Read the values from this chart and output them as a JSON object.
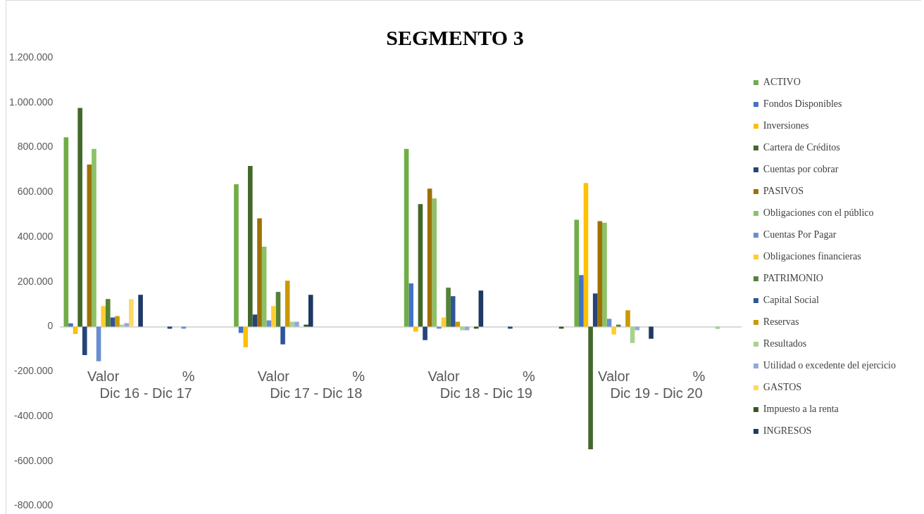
{
  "chart_data": {
    "type": "bar",
    "title": "SEGMENTO 3",
    "categories": [
      "Valor",
      "%",
      "Valor",
      "%",
      "Valor",
      "%",
      "Valor",
      "%"
    ],
    "annotations": [
      "Dic 16 - Dic 17",
      "Dic 17 - Dic 18",
      "Dic 18 - Dic 19",
      "Dic 19 - Dic 20"
    ],
    "ylim": [
      -800000,
      1200000
    ],
    "yticks": [
      {
        "value": -800000,
        "label": "-800.000"
      },
      {
        "value": -600000,
        "label": "-600.000"
      },
      {
        "value": -400000,
        "label": "-400.000"
      },
      {
        "value": -200000,
        "label": "-200.000"
      },
      0,
      {
        "value": 200000,
        "label": "200.000"
      },
      {
        "value": 400000,
        "label": "400.000"
      },
      {
        "value": 600000,
        "label": "600.000"
      },
      {
        "value": 800000,
        "label": "800.000"
      },
      {
        "value": 1000000,
        "label": "1.000.000"
      },
      {
        "value": 1200000,
        "label": "1.200.000"
      }
    ],
    "legend": "right",
    "series": [
      {
        "name": "ACTIVO",
        "color": "#70ad47",
        "values": [
          845000,
          0,
          635000,
          0,
          793000,
          0,
          477000,
          0
        ]
      },
      {
        "name": "Fondos Disponibles",
        "color": "#4472c4",
        "values": [
          15000,
          0,
          -28000,
          0,
          193000,
          0,
          230000,
          0
        ]
      },
      {
        "name": "Inversiones",
        "color": "#ffc000",
        "values": [
          -33000,
          0,
          -92000,
          0,
          -22000,
          0,
          641000,
          0
        ]
      },
      {
        "name": "Cartera de Créditos",
        "color": "#43682b",
        "values": [
          976000,
          0,
          717000,
          0,
          547000,
          0,
          -547000,
          0
        ]
      },
      {
        "name": "Cuentas por cobrar",
        "color": "#264478",
        "values": [
          -127000,
          -9000,
          54000,
          0,
          -60000,
          -9000,
          148000,
          0
        ]
      },
      {
        "name": "PASIVOS",
        "color": "#9e7000",
        "values": [
          723000,
          0,
          483000,
          0,
          616000,
          0,
          471000,
          0
        ]
      },
      {
        "name": "Obligaciones con el público",
        "color": "#8cc168",
        "values": [
          793000,
          0,
          357000,
          0,
          572000,
          0,
          464000,
          0
        ]
      },
      {
        "name": "Cuentas Por Pagar",
        "color": "#698ed0",
        "values": [
          -154000,
          -9000,
          28000,
          0,
          -9000,
          0,
          35000,
          0
        ]
      },
      {
        "name": "Obligaciones financieras",
        "color": "#ffcd33",
        "values": [
          92000,
          0,
          92000,
          0,
          41000,
          0,
          -35000,
          0
        ]
      },
      {
        "name": "PATRIMONIO",
        "color": "#548235",
        "values": [
          123000,
          0,
          155000,
          0,
          174000,
          0,
          9000,
          0
        ]
      },
      {
        "name": "Capital Social",
        "color": "#2f5597",
        "values": [
          41000,
          0,
          -79000,
          0,
          136000,
          0,
          0,
          0
        ]
      },
      {
        "name": "Reservas",
        "color": "#c99a00",
        "values": [
          47000,
          0,
          205000,
          0,
          22000,
          0,
          73000,
          0
        ]
      },
      {
        "name": "Resultados",
        "color": "#a9d18e",
        "values": [
          9000,
          0,
          22000,
          0,
          -16000,
          0,
          -73000,
          -10000
        ]
      },
      {
        "name": "Utilidad o excedente del ejercicio",
        "color": "#8faadc",
        "values": [
          16000,
          0,
          22000,
          0,
          -16000,
          0,
          -16000,
          0
        ]
      },
      {
        "name": "GASTOS",
        "color": "#ffd966",
        "values": [
          123000,
          0,
          0,
          0,
          0,
          0,
          0,
          0
        ]
      },
      {
        "name": "Impuesto a la renta",
        "color": "#375623",
        "values": [
          0,
          0,
          9000,
          0,
          -9000,
          -9000,
          0,
          0
        ]
      },
      {
        "name": "INGRESOS",
        "color": "#1f3864",
        "values": [
          142000,
          0,
          142000,
          0,
          161000,
          0,
          -54000,
          0
        ]
      }
    ]
  }
}
